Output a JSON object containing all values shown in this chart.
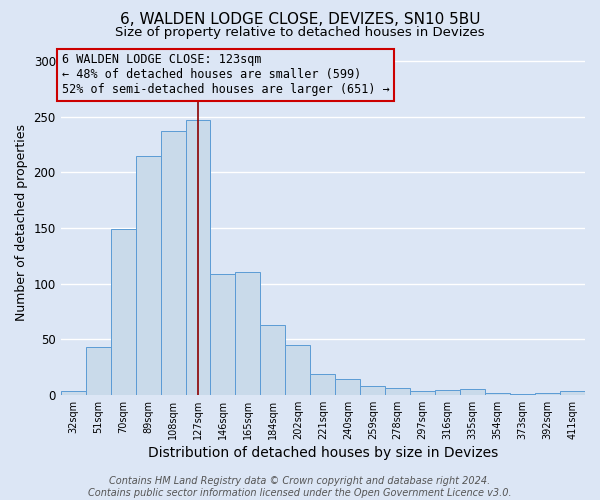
{
  "title": "6, WALDEN LODGE CLOSE, DEVIZES, SN10 5BU",
  "subtitle": "Size of property relative to detached houses in Devizes",
  "xlabel": "Distribution of detached houses by size in Devizes",
  "ylabel": "Number of detached properties",
  "categories": [
    "32sqm",
    "51sqm",
    "70sqm",
    "89sqm",
    "108sqm",
    "127sqm",
    "146sqm",
    "165sqm",
    "184sqm",
    "202sqm",
    "221sqm",
    "240sqm",
    "259sqm",
    "278sqm",
    "297sqm",
    "316sqm",
    "335sqm",
    "354sqm",
    "373sqm",
    "392sqm",
    "411sqm"
  ],
  "values": [
    3,
    43,
    149,
    215,
    237,
    247,
    109,
    110,
    63,
    45,
    19,
    14,
    8,
    6,
    3,
    4,
    5,
    2,
    1,
    2,
    3
  ],
  "bar_color": "#c9daea",
  "bar_edge_color": "#5b9bd5",
  "annotation_text": "6 WALDEN LODGE CLOSE: 123sqm\n← 48% of detached houses are smaller (599)\n52% of semi-detached houses are larger (651) →",
  "vline_index": 5,
  "vline_color": "#8b0000",
  "ylim": [
    0,
    310
  ],
  "yticks": [
    0,
    50,
    100,
    150,
    200,
    250,
    300
  ],
  "footnote": "Contains HM Land Registry data © Crown copyright and database right 2024.\nContains public sector information licensed under the Open Government Licence v3.0.",
  "background_color": "#dce6f5",
  "grid_color": "#ffffff",
  "title_fontsize": 11,
  "subtitle_fontsize": 9.5,
  "xlabel_fontsize": 10,
  "ylabel_fontsize": 9,
  "annotation_fontsize": 8.5,
  "footnote_fontsize": 7
}
